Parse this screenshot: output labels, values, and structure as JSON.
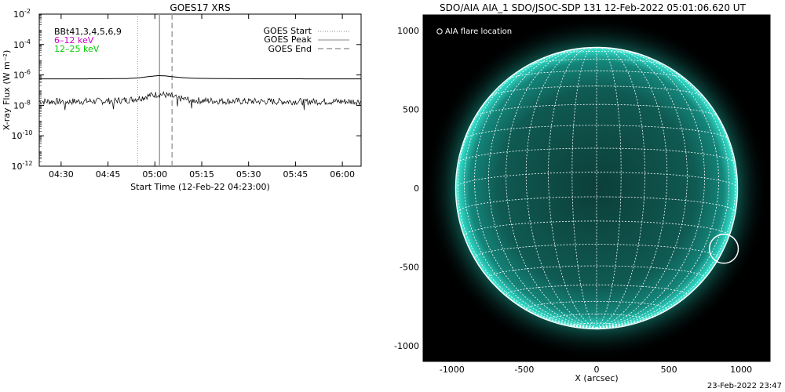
{
  "footer_timestamp": "23-Feb-2022 23:47",
  "chart_data": [
    {
      "type": "line",
      "title": "GOES17 XRS",
      "xlabel": "Start Time (12-Feb-22 04:23:00)",
      "ylabel": "X-ray Flux (W m⁻²)",
      "yscale": "log",
      "ylim": [
        1e-12,
        0.01
      ],
      "xlim_minutes": [
        0,
        103
      ],
      "x_ticks": [
        {
          "label": "04:30",
          "minute": 7
        },
        {
          "label": "04:45",
          "minute": 22
        },
        {
          "label": "05:00",
          "minute": 37
        },
        {
          "label": "05:15",
          "minute": 52
        },
        {
          "label": "05:30",
          "minute": 67
        },
        {
          "label": "05:45",
          "minute": 82
        },
        {
          "label": "06:00",
          "minute": 97
        }
      ],
      "y_ticks": [
        {
          "base": "10",
          "exp": "-2",
          "value": 0.01
        },
        {
          "base": "10",
          "exp": "-4",
          "value": 0.0001
        },
        {
          "base": "10",
          "exp": "-6",
          "value": 1e-06
        },
        {
          "base": "10",
          "exp": "-8",
          "value": 1e-08
        },
        {
          "base": "10",
          "exp": "-10",
          "value": 1e-10
        },
        {
          "base": "10",
          "exp": "-12",
          "value": 1e-12
        }
      ],
      "channel_labels": [
        {
          "text": "BBt41,3,4,5,6,9",
          "color": "#000000"
        },
        {
          "text": "6–12 keV",
          "color": "#cc00cc"
        },
        {
          "text": "12–25 keV",
          "color": "#00cc00"
        }
      ],
      "legend": {
        "position": "top-right",
        "entries": [
          {
            "label": "GOES Start",
            "style": "dotted"
          },
          {
            "label": "GOES Peak",
            "style": "solid"
          },
          {
            "label": "GOES End",
            "style": "dashed"
          }
        ]
      },
      "event_lines_minutes": {
        "start": 31.5,
        "peak": 38.5,
        "end": 42.5
      },
      "series": [
        {
          "channel": "long",
          "color": "#000000",
          "x_minutes": [
            0,
            10,
            20,
            28,
            32,
            35,
            38,
            40,
            43,
            46,
            50,
            60,
            70,
            80,
            90,
            103
          ],
          "values": [
            5.5e-07,
            5.5e-07,
            5.6e-07,
            5.8e-07,
            6.5e-07,
            7.8e-07,
            9e-07,
            8.8e-07,
            7.5e-07,
            6.6e-07,
            6e-07,
            5.7e-07,
            5.6e-07,
            5.6e-07,
            5.5e-07,
            5.5e-07
          ]
        },
        {
          "channel": "short",
          "color": "#000000",
          "x_minutes": [
            0,
            10,
            20,
            28,
            32,
            35,
            38,
            40,
            43,
            46,
            50,
            60,
            70,
            80,
            90,
            103
          ],
          "values": [
            1.8e-08,
            1.8e-08,
            1.9e-08,
            2.2e-08,
            3e-08,
            4.2e-08,
            5.5e-08,
            5e-08,
            3.5e-08,
            2.6e-08,
            2.1e-08,
            1.9e-08,
            1.8e-08,
            1.8e-08,
            1.8e-08,
            1.8e-08
          ]
        }
      ]
    },
    {
      "type": "image",
      "title": "SDO/AIA AIA_1 SDO/JSOC-SDP 131 12-Feb-2022 05:01:06.620 UT",
      "xlabel": "X (arcsec)",
      "ylabel": "",
      "xlim": [
        -1200,
        1200
      ],
      "ylim": [
        -1100,
        1100
      ],
      "x_ticks": [
        -1000,
        -500,
        0,
        500,
        1000
      ],
      "y_ticks": [
        -1000,
        -500,
        0,
        500,
        1000
      ],
      "solar_radius_arcsec": 975,
      "grid_spacing_deg": 10,
      "legend_label": "AIA flare location",
      "flare_location_arcsec": [
        880,
        -385
      ],
      "flare_circle_radius_arcsec": 100,
      "disk_color": "#0f7f72",
      "limb_color": "#2fd6c3"
    }
  ]
}
